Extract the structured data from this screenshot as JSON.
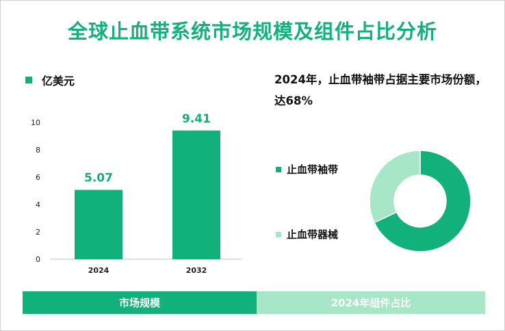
{
  "title": "全球止血带系统市场规模及组件占比分析",
  "colors": {
    "primary": "#12b07a",
    "secondary": "#a7e6c6",
    "axis": "#bdbdbd"
  },
  "bar_legend_label": "亿美元",
  "headline": "2024年，止血带袖带占据主要市场份额，达68%",
  "footer": {
    "left": "市场规模",
    "right": "2024年组件占比"
  },
  "chart_data": [
    {
      "type": "bar",
      "title": "市场规模",
      "unit": "亿美元",
      "categories": [
        "2024",
        "2032"
      ],
      "values": [
        5.07,
        9.41
      ],
      "data_labels": [
        "5.07",
        "9.41"
      ],
      "yticks": [
        "0",
        "2",
        "4",
        "6",
        "8",
        "10"
      ],
      "ylim": [
        0,
        10
      ],
      "grid": false
    },
    {
      "type": "pie",
      "title": "2024年组件占比",
      "donut": true,
      "labels": [
        "止血带袖带",
        "止血带器械"
      ],
      "values": [
        68,
        32
      ]
    }
  ]
}
